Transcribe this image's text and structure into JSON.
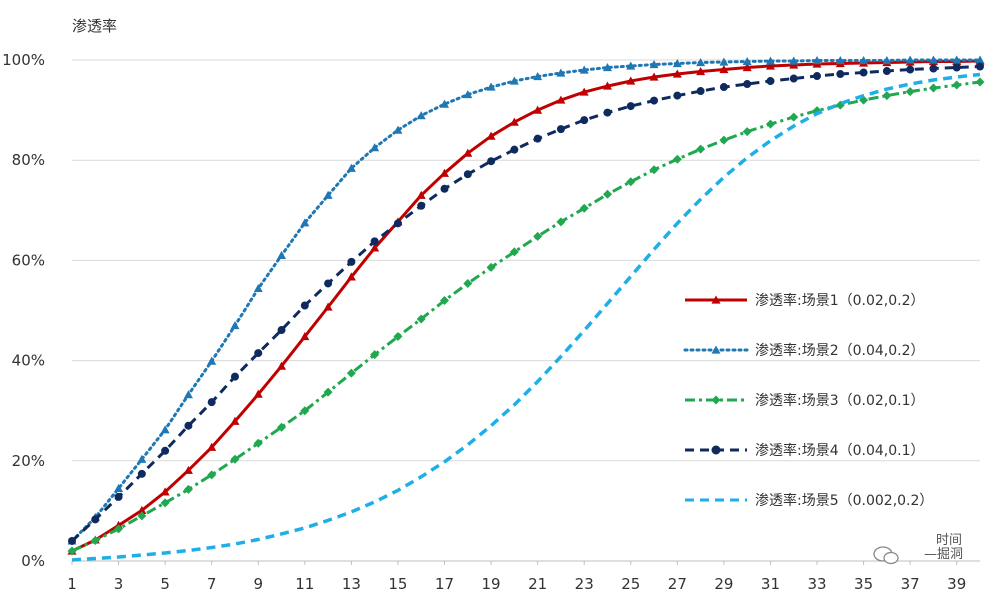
{
  "chart_data": {
    "type": "line",
    "title": "",
    "ylabel": "渗透率",
    "xlabel": "",
    "ylim": [
      0,
      1
    ],
    "xlim": [
      1,
      40
    ],
    "x_tick_labels": [
      "1",
      "3",
      "5",
      "7",
      "9",
      "11",
      "13",
      "15",
      "17",
      "19",
      "21",
      "23",
      "25",
      "27",
      "29",
      "31",
      "33",
      "35",
      "37",
      "39"
    ],
    "y_tick_labels": [
      "0%",
      "20%",
      "40%",
      "60%",
      "80%",
      "100%"
    ],
    "grid": "horizontal",
    "legend_position": "right",
    "series": [
      {
        "name": "渗透率:场景1（0.02,0.2）",
        "color": "#c00000",
        "style": "solid",
        "marker": "triangle",
        "values": [
          0.02,
          0.042,
          0.071,
          0.101,
          0.138,
          0.181,
          0.227,
          0.279,
          0.333,
          0.389,
          0.448,
          0.507,
          0.567,
          0.625,
          0.677,
          0.73,
          0.774,
          0.814,
          0.848,
          0.876,
          0.9,
          0.92,
          0.936,
          0.948,
          0.958,
          0.966,
          0.972,
          0.977,
          0.981,
          0.985,
          0.988,
          0.99,
          0.992,
          0.993,
          0.994,
          0.995,
          0.996,
          0.997,
          0.997,
          0.998
        ]
      },
      {
        "name": "渗透率:场景2（0.04,0.2）",
        "color": "#1f77b4",
        "style": "dotted",
        "marker": "triangle",
        "values": [
          0.04,
          0.087,
          0.145,
          0.203,
          0.262,
          0.332,
          0.399,
          0.47,
          0.544,
          0.61,
          0.675,
          0.73,
          0.784,
          0.825,
          0.86,
          0.889,
          0.912,
          0.931,
          0.946,
          0.958,
          0.967,
          0.974,
          0.98,
          0.985,
          0.988,
          0.991,
          0.993,
          0.995,
          0.996,
          0.997,
          0.998,
          0.998,
          0.999,
          0.999,
          0.999,
          0.999,
          1.0,
          1.0,
          1.0,
          1.0
        ]
      },
      {
        "name": "渗透率:场景3（0.02,0.1）",
        "color": "#1fa84f",
        "style": "dashdot",
        "marker": "diamond",
        "values": [
          0.02,
          0.041,
          0.064,
          0.09,
          0.116,
          0.143,
          0.172,
          0.203,
          0.235,
          0.267,
          0.3,
          0.337,
          0.375,
          0.412,
          0.448,
          0.483,
          0.52,
          0.554,
          0.586,
          0.617,
          0.648,
          0.677,
          0.704,
          0.732,
          0.757,
          0.781,
          0.802,
          0.822,
          0.84,
          0.857,
          0.872,
          0.886,
          0.899,
          0.91,
          0.92,
          0.929,
          0.937,
          0.944,
          0.95,
          0.956
        ]
      },
      {
        "name": "渗透率:场景4（0.04,0.1）",
        "color": "#0e2a5e",
        "style": "dashed",
        "marker": "circle",
        "values": [
          0.04,
          0.083,
          0.128,
          0.174,
          0.22,
          0.27,
          0.317,
          0.368,
          0.415,
          0.461,
          0.51,
          0.554,
          0.597,
          0.638,
          0.674,
          0.709,
          0.743,
          0.772,
          0.798,
          0.821,
          0.843,
          0.862,
          0.88,
          0.895,
          0.908,
          0.919,
          0.929,
          0.938,
          0.946,
          0.952,
          0.958,
          0.963,
          0.968,
          0.972,
          0.975,
          0.978,
          0.981,
          0.983,
          0.985,
          0.987
        ]
      },
      {
        "name": "渗透率:场景5（0.002,0.2）",
        "color": "#1eaee8",
        "style": "dashed",
        "marker": "none",
        "values": [
          0.002,
          0.005,
          0.008,
          0.012,
          0.016,
          0.021,
          0.027,
          0.034,
          0.043,
          0.054,
          0.066,
          0.081,
          0.098,
          0.118,
          0.141,
          0.168,
          0.198,
          0.232,
          0.27,
          0.312,
          0.358,
          0.408,
          0.46,
          0.514,
          0.568,
          0.622,
          0.674,
          0.722,
          0.766,
          0.805,
          0.839,
          0.868,
          0.893,
          0.913,
          0.929,
          0.942,
          0.952,
          0.96,
          0.966,
          0.971
        ]
      }
    ]
  },
  "watermark": {
    "line1": "时间",
    "line2": "—掘洞"
  }
}
